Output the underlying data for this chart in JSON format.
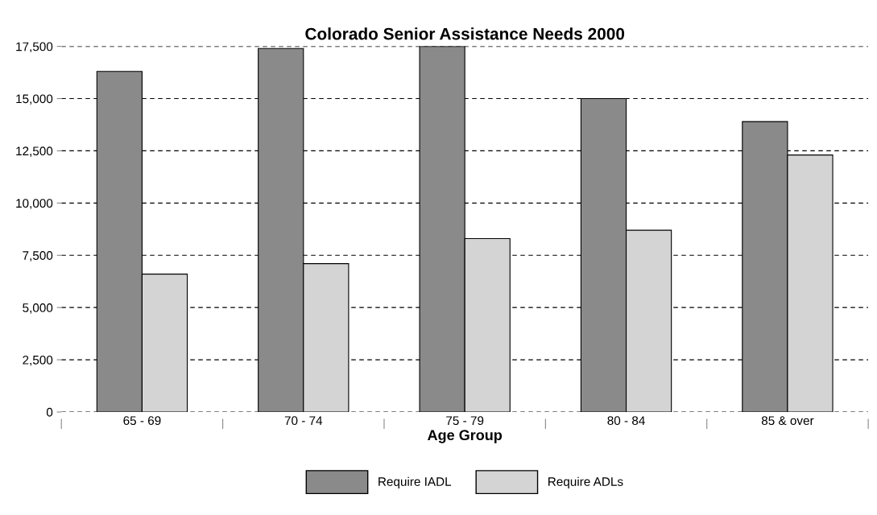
{
  "chart_data": {
    "type": "bar",
    "title": "Colorado Senior Assistance Needs 2000",
    "xlabel": "Age Group",
    "categories": [
      "65 - 69",
      "70 - 74",
      "75 - 79",
      "80 - 84",
      "85 & over"
    ],
    "series": [
      {
        "name": "Require IADL",
        "color": "#8a8a8a",
        "values": [
          16300,
          17400,
          17500,
          15000,
          13900
        ]
      },
      {
        "name": "Require ADLs",
        "color": "#d4d4d4",
        "values": [
          6600,
          7100,
          8300,
          8700,
          12300
        ]
      }
    ],
    "ylim": [
      0,
      17500
    ],
    "yticks": [
      0,
      {
        "value": 2500,
        "label": "2,500"
      },
      {
        "value": 5000,
        "label": "5,000"
      },
      {
        "value": 7500,
        "label": "7,500"
      },
      {
        "value": 10000,
        "label": "10,000"
      },
      {
        "value": 12500,
        "label": "12,500"
      },
      {
        "value": 15000,
        "label": "15,000"
      },
      {
        "value": 17500,
        "label": "17,500"
      }
    ],
    "grid": "y",
    "legend": "bottom"
  }
}
